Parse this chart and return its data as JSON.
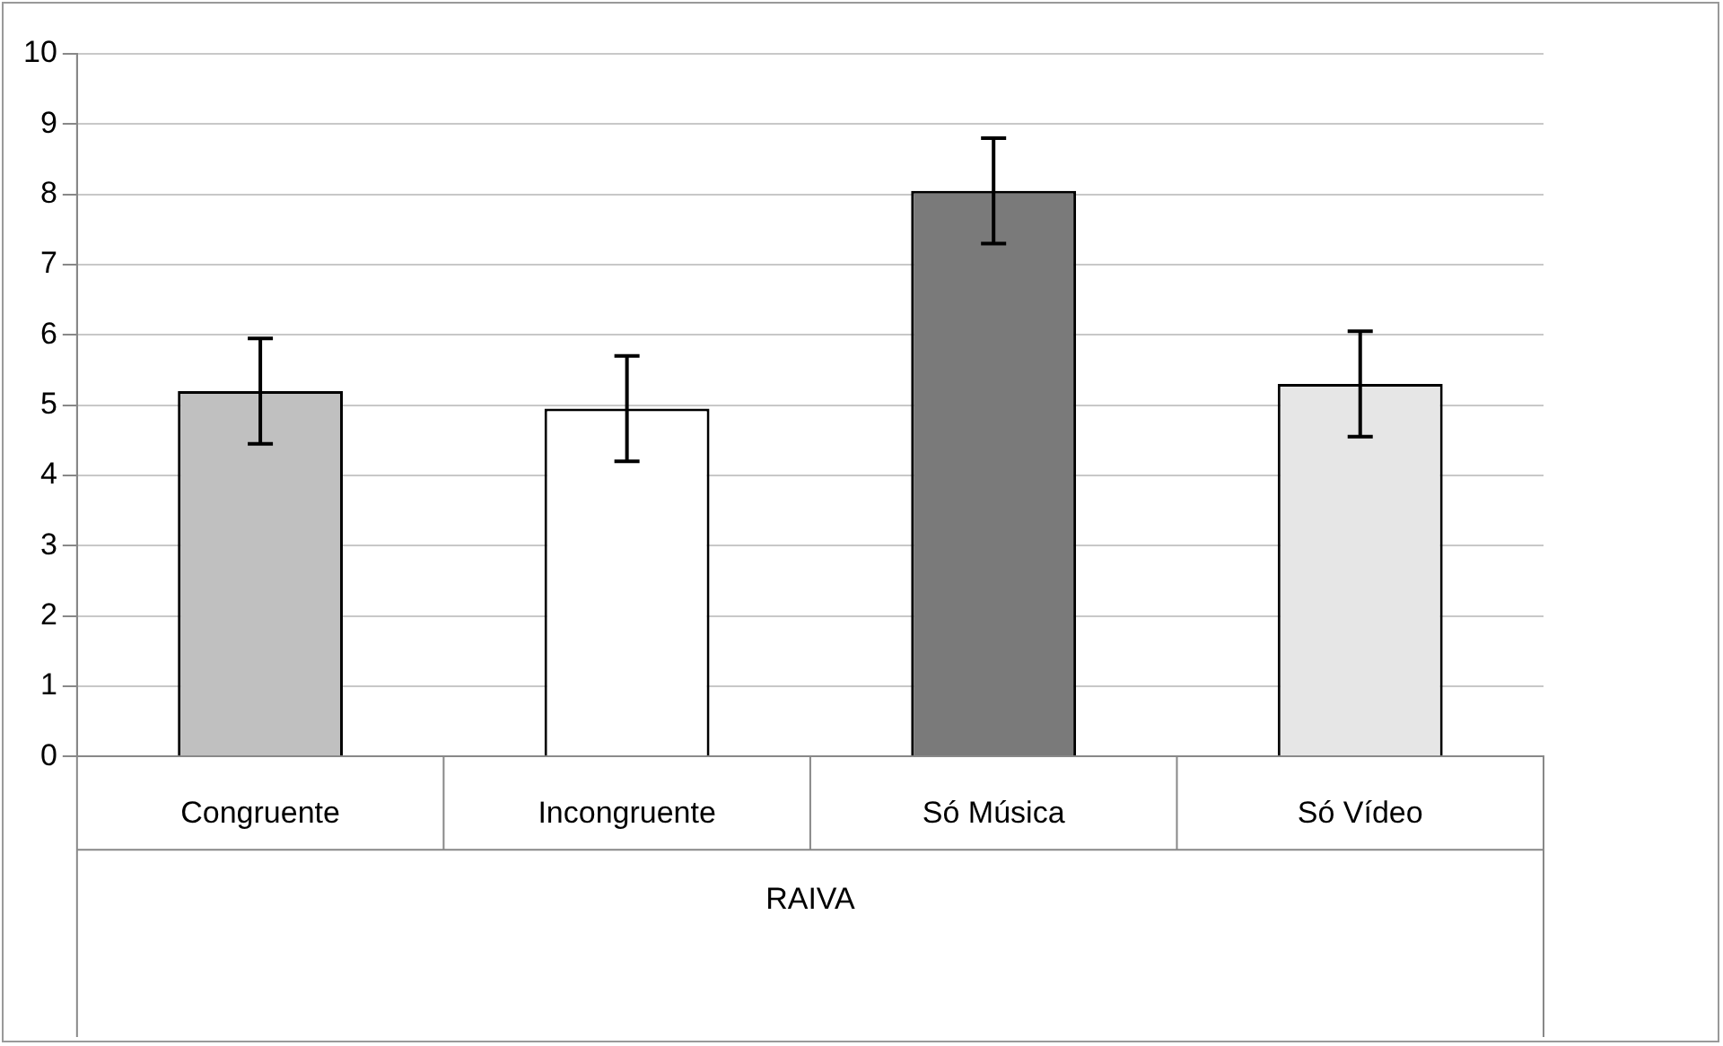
{
  "chart_data": {
    "type": "bar",
    "xlabel": "RAIVA",
    "categories": [
      "Congruente",
      "Incongruente",
      "Só Música",
      "Só Vídeo"
    ],
    "values": [
      5.2,
      4.95,
      8.05,
      5.3
    ],
    "colors": [
      "#c0c0c0",
      "#ffffff",
      "#7a7a7a",
      "#e6e6e6"
    ],
    "errors": [
      0.75,
      0.75,
      0.75,
      0.75
    ],
    "ylim": [
      0,
      10
    ],
    "yticks": [
      0,
      1,
      2,
      3,
      4,
      5,
      6,
      7,
      8,
      9,
      10
    ],
    "grid": "y",
    "legend": false
  }
}
